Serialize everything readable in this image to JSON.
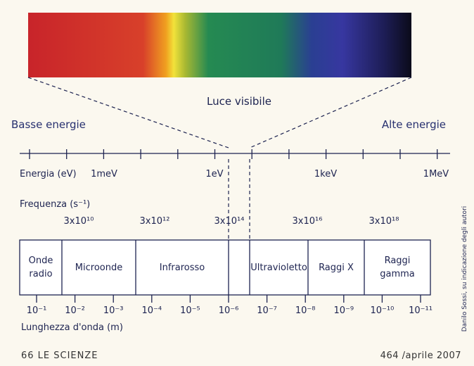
{
  "labels": {
    "visible": "Luce visibile",
    "low": "Basse energie",
    "high": "Alte energie"
  },
  "energy": {
    "label": "Energia (eV)",
    "ticks": [
      "1meV",
      "1eV",
      "1keV",
      "1MeV"
    ]
  },
  "frequency": {
    "label": "Frequenza (s⁻¹)",
    "ticks": [
      "3x10¹⁰",
      "3x10¹²",
      "3x10¹⁴",
      "3x10¹⁶",
      "3x10¹⁸"
    ]
  },
  "bands": [
    "Onde radio",
    "Microonde",
    "Infrarosso",
    "Ultravioletto",
    "Raggi X",
    "Raggi gamma"
  ],
  "wavelength": {
    "label": "Lunghezza d'onda (m)",
    "ticks": [
      "10⁻¹",
      "10⁻²",
      "10⁻³",
      "10⁻⁴",
      "10⁻⁵",
      "10⁻⁶",
      "10⁻⁷",
      "10⁻⁸",
      "10⁻⁹",
      "10⁻¹⁰",
      "10⁻¹¹"
    ]
  },
  "credit": "Danilo Sossi, su indicazione degli autori",
  "footer": {
    "left": "66 LE SCIENZE",
    "right": "464 /aprile 2007"
  }
}
